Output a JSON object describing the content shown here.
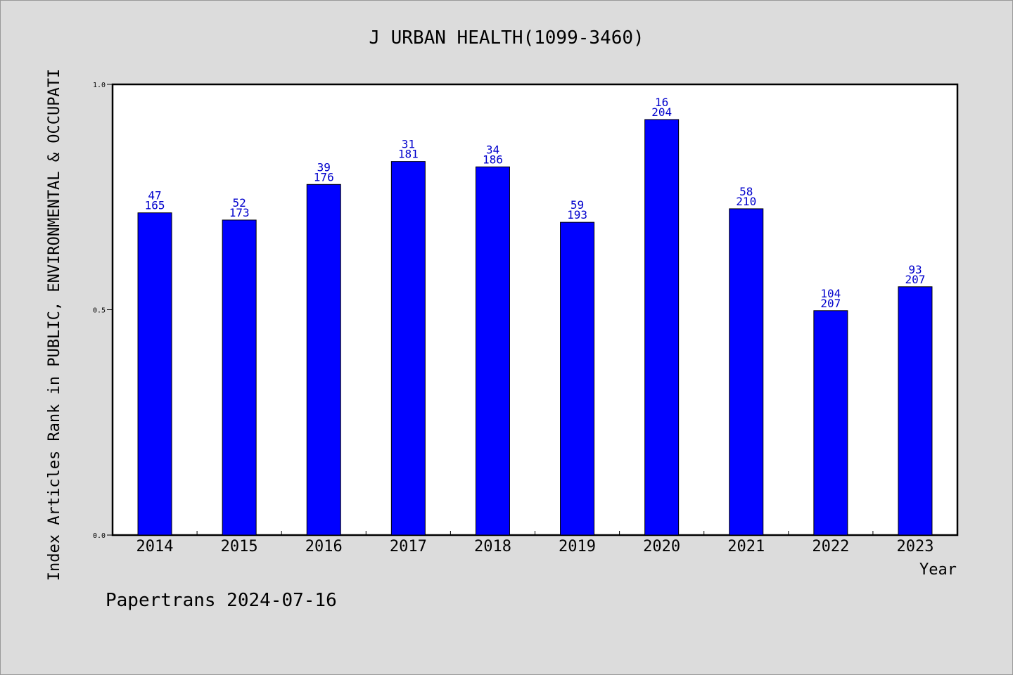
{
  "chart_data": {
    "type": "bar",
    "title": "J URBAN HEALTH(1099-3460)",
    "xlabel": "Year",
    "ylabel": "Index Articles Rank in PUBLIC, ENVIRONMENTAL & OCCUPATI",
    "ylim": [
      0.0,
      1.0
    ],
    "yticks": [
      "0.0",
      "0.5",
      "1.0"
    ],
    "categories": [
      "2014",
      "2015",
      "2016",
      "2017",
      "2018",
      "2019",
      "2020",
      "2021",
      "2022",
      "2023"
    ],
    "values": [
      0.715,
      0.699,
      0.778,
      0.829,
      0.817,
      0.694,
      0.922,
      0.724,
      0.498,
      0.551
    ],
    "rank": [
      "47",
      "52",
      "39",
      "31",
      "34",
      "59",
      "16",
      "58",
      "104",
      "93"
    ],
    "total": [
      "165",
      "173",
      "176",
      "181",
      "186",
      "193",
      "204",
      "210",
      "207",
      "207"
    ],
    "bar_color": "#0000ff",
    "label_color": "#0000cc",
    "grid": false
  },
  "footer": "Papertrans 2024-07-16",
  "colors": {
    "background": "#dcdcdc",
    "plot_background": "#ffffff"
  }
}
